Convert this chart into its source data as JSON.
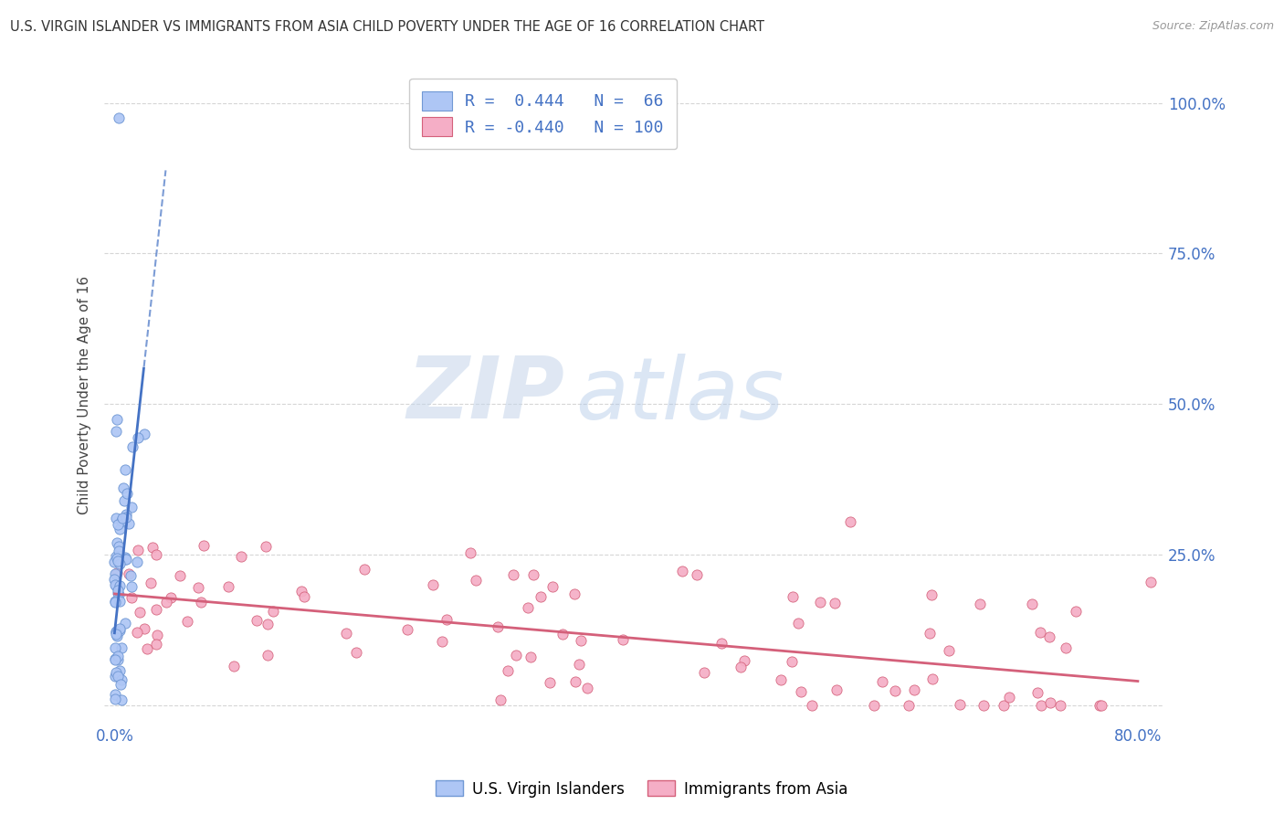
{
  "title": "U.S. VIRGIN ISLANDER VS IMMIGRANTS FROM ASIA CHILD POVERTY UNDER THE AGE OF 16 CORRELATION CHART",
  "source": "Source: ZipAtlas.com",
  "ylabel": "Child Poverty Under the Age of 16",
  "ytick_vals": [
    0.0,
    0.25,
    0.5,
    0.75,
    1.0
  ],
  "ytick_labels": [
    "",
    "25.0%",
    "50.0%",
    "75.0%",
    "100.0%"
  ],
  "xtick_vals": [
    0.0,
    0.2,
    0.4,
    0.6,
    0.8
  ],
  "xtick_labels": [
    "0.0%",
    "",
    "",
    "",
    "80.0%"
  ],
  "legend_bottom": [
    "U.S. Virgin Islanders",
    "Immigrants from Asia"
  ],
  "watermark_zip": "ZIP",
  "watermark_atlas": "atlas",
  "blue_color": "#4472c4",
  "pink_color": "#d4607a",
  "blue_scatter_face": "#aec6f5",
  "blue_scatter_edge": "#7098d4",
  "pink_scatter_face": "#f5aec6",
  "pink_scatter_edge": "#d4607a",
  "blue_R": "0.444",
  "blue_N": "66",
  "pink_R": "-0.440",
  "pink_N": "100",
  "background_color": "#ffffff",
  "grid_color": "#cccccc",
  "axis_label_color": "#4472c4",
  "seed": 99
}
